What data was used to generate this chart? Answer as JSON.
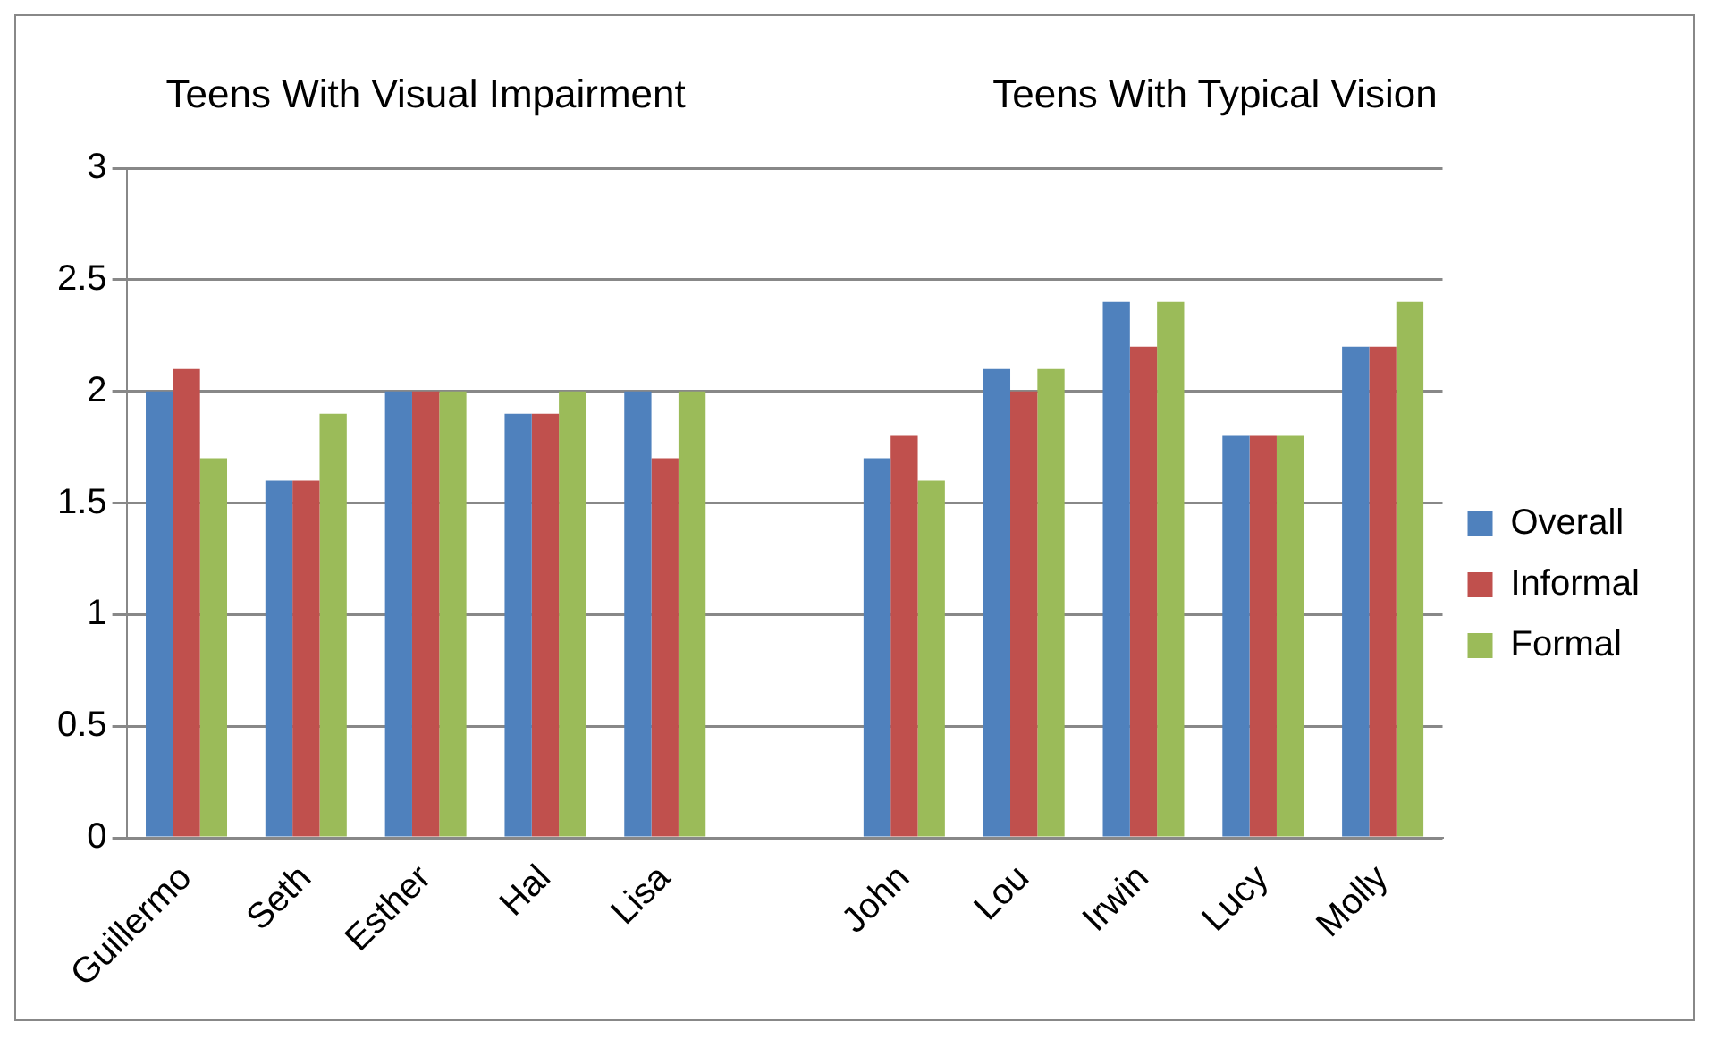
{
  "chart_data": {
    "type": "bar",
    "categories": [
      "Guillermo",
      "Seth",
      "Esther",
      "Hal",
      "Lisa",
      null,
      "John",
      "Lou",
      "Irwin",
      "Lucy",
      "Molly"
    ],
    "series": [
      {
        "name": "Overall",
        "color": "#4f81bd",
        "values": [
          2,
          1.6,
          2,
          1.9,
          2,
          null,
          1.7,
          2.1,
          2.4,
          1.8,
          2.2
        ]
      },
      {
        "name": "Informal",
        "color": "#c0504d",
        "values": [
          2.1,
          1.6,
          2,
          1.9,
          1.7,
          null,
          1.8,
          2,
          2.2,
          1.8,
          2.2
        ]
      },
      {
        "name": "Formal",
        "color": "#9bbb59",
        "values": [
          1.7,
          1.9,
          2,
          2,
          2,
          null,
          1.6,
          2.1,
          2.4,
          1.8,
          2.4
        ]
      }
    ],
    "ylim": [
      0,
      3
    ],
    "yticks": [
      0,
      0.5,
      1,
      1.5,
      2,
      2.5,
      3
    ],
    "grid": "y",
    "legend": "right",
    "annotations": [
      "Teens With Visual Impairment",
      "Teens With Typical Vision"
    ]
  }
}
